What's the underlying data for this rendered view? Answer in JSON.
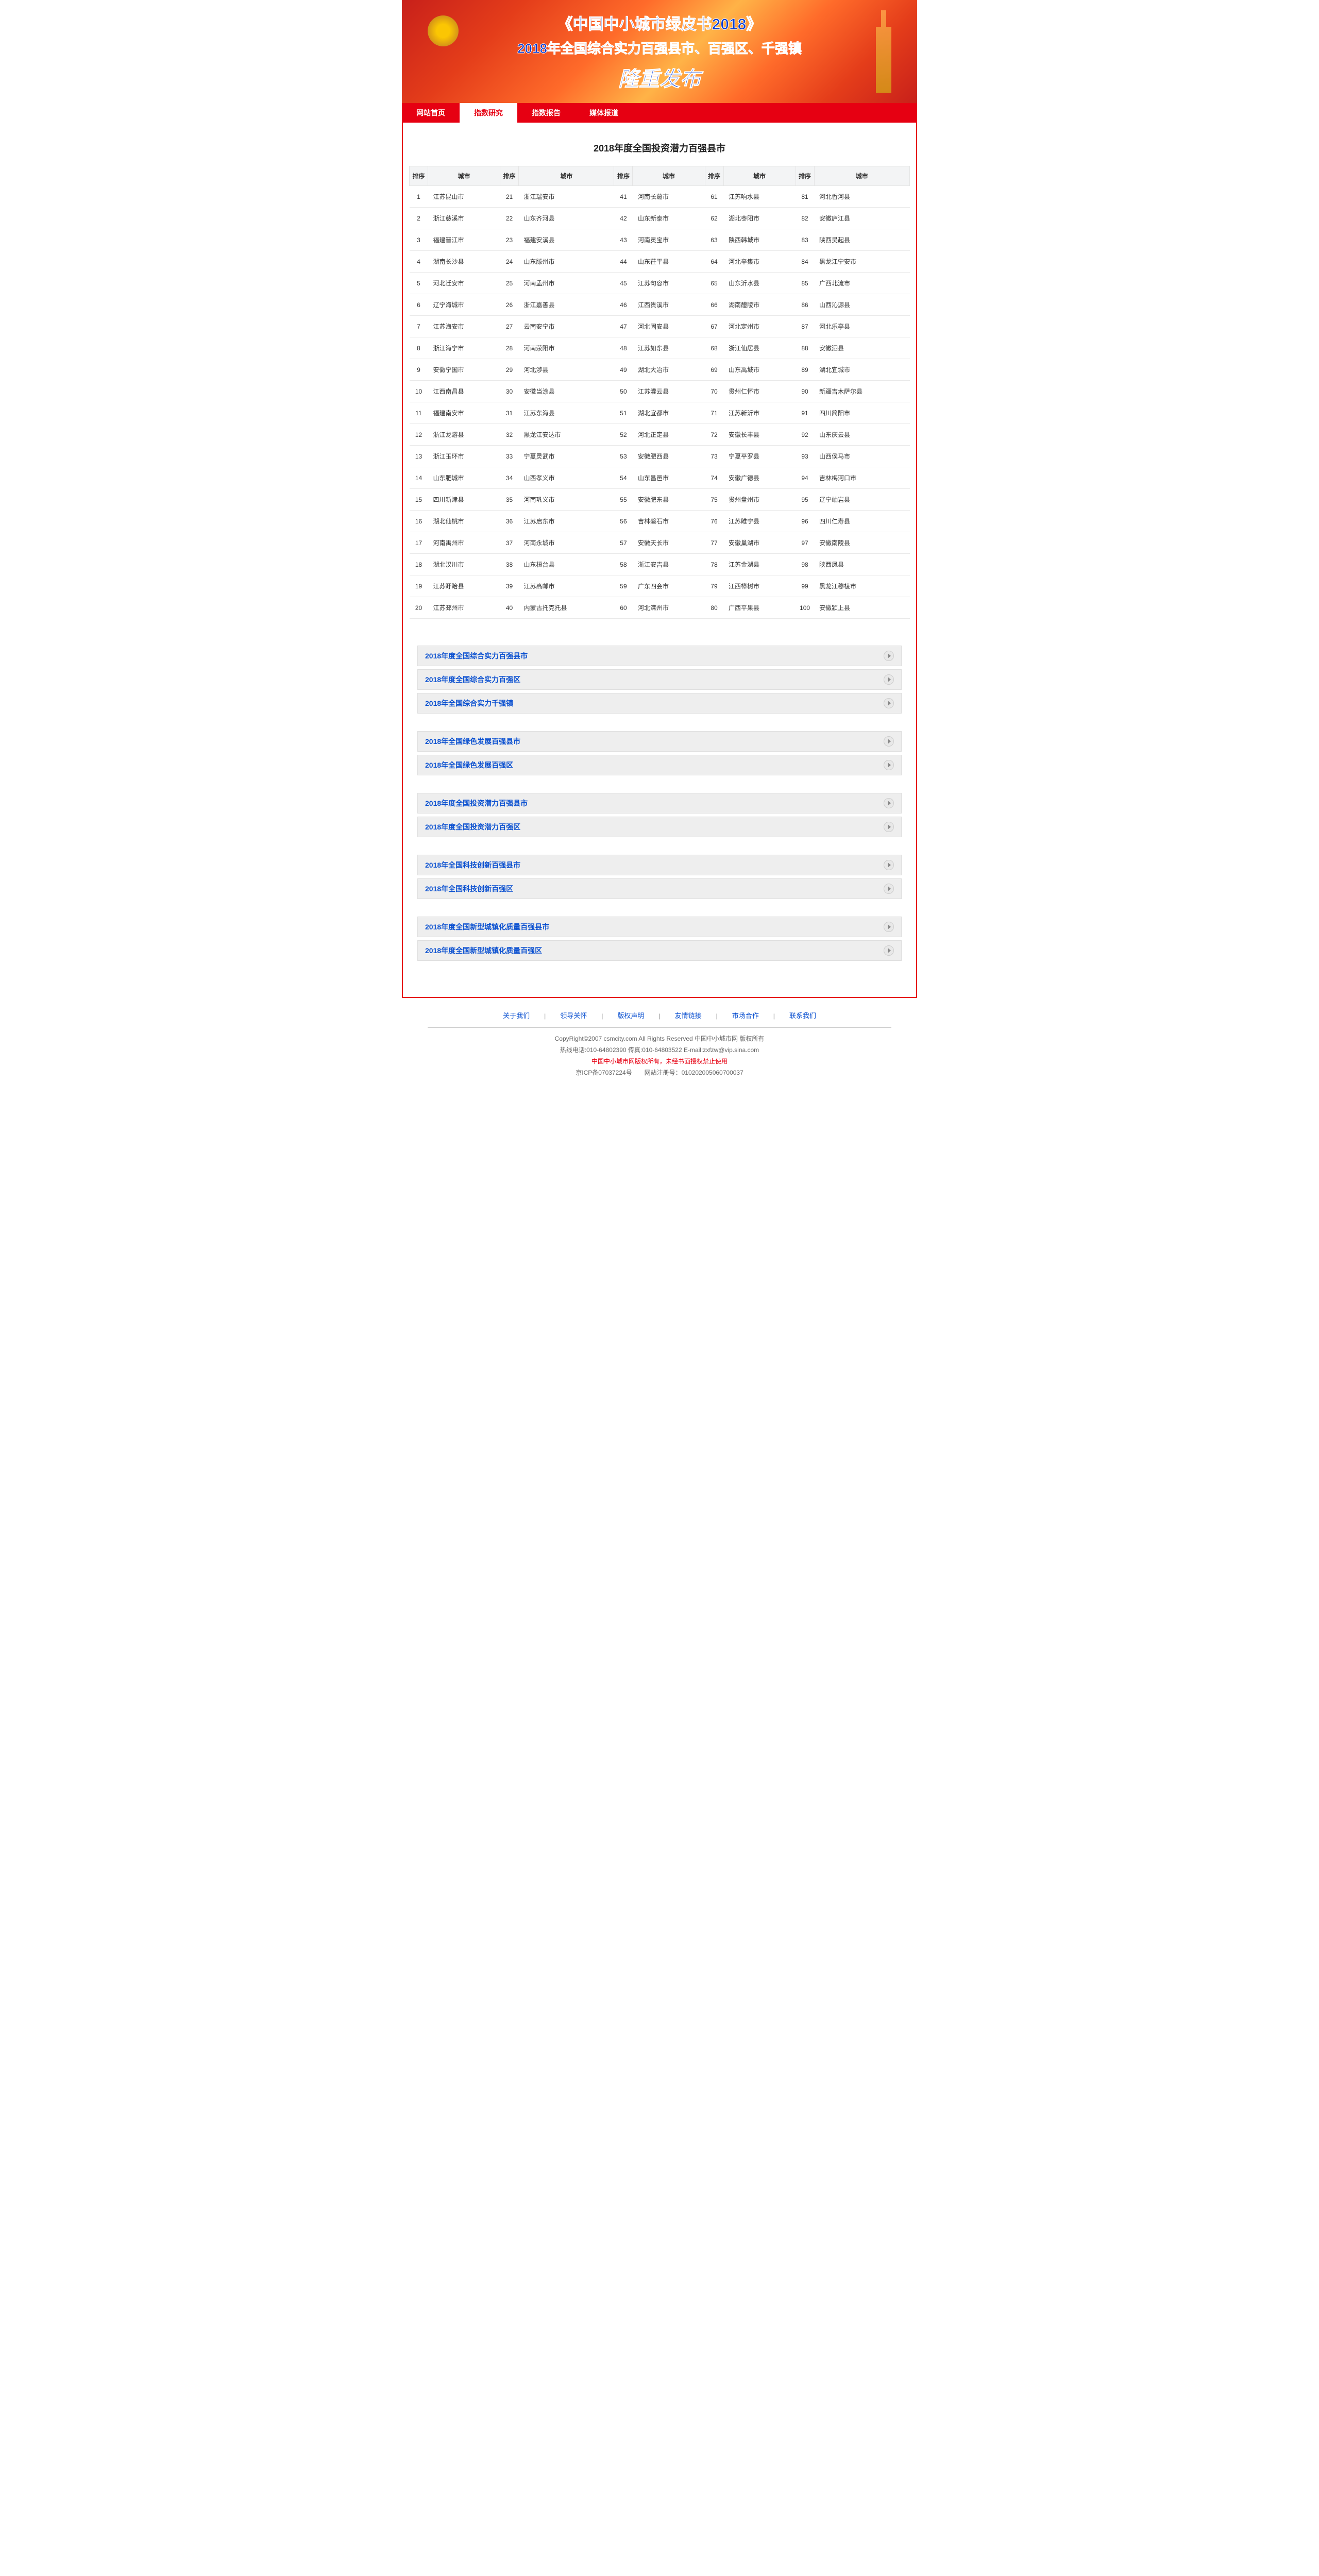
{
  "banner": {
    "line1": "《中国中小城市绿皮书2018》",
    "line2": "2018年全国综合实力百强县市、百强区、千强镇",
    "line3": "隆重发布"
  },
  "nav": {
    "items": [
      {
        "label": "网站首页",
        "active": false
      },
      {
        "label": "指数研究",
        "active": true
      },
      {
        "label": "指数报告",
        "active": false
      },
      {
        "label": "媒体报道",
        "active": false
      }
    ]
  },
  "table": {
    "title": "2018年度全国投资潜力百强县市",
    "header_rank": "排序",
    "header_city": "城市",
    "rows": [
      [
        {
          "r": "1",
          "c": "江苏昆山市"
        },
        {
          "r": "21",
          "c": "浙江瑞安市"
        },
        {
          "r": "41",
          "c": "河南长葛市"
        },
        {
          "r": "61",
          "c": "江苏响水县"
        },
        {
          "r": "81",
          "c": "河北香河县"
        }
      ],
      [
        {
          "r": "2",
          "c": "浙江慈溪市"
        },
        {
          "r": "22",
          "c": "山东齐河县"
        },
        {
          "r": "42",
          "c": "山东新泰市"
        },
        {
          "r": "62",
          "c": "湖北枣阳市"
        },
        {
          "r": "82",
          "c": "安徽庐江县"
        }
      ],
      [
        {
          "r": "3",
          "c": "福建晋江市"
        },
        {
          "r": "23",
          "c": "福建安溪县"
        },
        {
          "r": "43",
          "c": "河南灵宝市"
        },
        {
          "r": "63",
          "c": "陕西韩城市"
        },
        {
          "r": "83",
          "c": "陕西吴起县"
        }
      ],
      [
        {
          "r": "4",
          "c": "湖南长沙县"
        },
        {
          "r": "24",
          "c": "山东滕州市"
        },
        {
          "r": "44",
          "c": "山东茌平县"
        },
        {
          "r": "64",
          "c": "河北辛集市"
        },
        {
          "r": "84",
          "c": "黑龙江宁安市"
        }
      ],
      [
        {
          "r": "5",
          "c": "河北迁安市"
        },
        {
          "r": "25",
          "c": "河南孟州市"
        },
        {
          "r": "45",
          "c": "江苏句容市"
        },
        {
          "r": "65",
          "c": "山东沂水县"
        },
        {
          "r": "85",
          "c": "广西北流市"
        }
      ],
      [
        {
          "r": "6",
          "c": "辽宁海城市"
        },
        {
          "r": "26",
          "c": "浙江嘉善县"
        },
        {
          "r": "46",
          "c": "江西贵溪市"
        },
        {
          "r": "66",
          "c": "湖南醴陵市"
        },
        {
          "r": "86",
          "c": "山西沁源县"
        }
      ],
      [
        {
          "r": "7",
          "c": "江苏海安市"
        },
        {
          "r": "27",
          "c": "云南安宁市"
        },
        {
          "r": "47",
          "c": "河北固安县"
        },
        {
          "r": "67",
          "c": "河北定州市"
        },
        {
          "r": "87",
          "c": "河北乐亭县"
        }
      ],
      [
        {
          "r": "8",
          "c": "浙江海宁市"
        },
        {
          "r": "28",
          "c": "河南荥阳市"
        },
        {
          "r": "48",
          "c": "江苏如东县"
        },
        {
          "r": "68",
          "c": "浙江仙居县"
        },
        {
          "r": "88",
          "c": "安徽泗县"
        }
      ],
      [
        {
          "r": "9",
          "c": "安徽宁国市"
        },
        {
          "r": "29",
          "c": "河北涉县"
        },
        {
          "r": "49",
          "c": "湖北大冶市"
        },
        {
          "r": "69",
          "c": "山东禹城市"
        },
        {
          "r": "89",
          "c": "湖北宜城市"
        }
      ],
      [
        {
          "r": "10",
          "c": "江西南昌县"
        },
        {
          "r": "30",
          "c": "安徽当涂县"
        },
        {
          "r": "50",
          "c": "江苏灌云县"
        },
        {
          "r": "70",
          "c": "贵州仁怀市"
        },
        {
          "r": "90",
          "c": "新疆吉木萨尔县"
        }
      ],
      [
        {
          "r": "11",
          "c": "福建南安市"
        },
        {
          "r": "31",
          "c": "江苏东海县"
        },
        {
          "r": "51",
          "c": "湖北宜都市"
        },
        {
          "r": "71",
          "c": "江苏新沂市"
        },
        {
          "r": "91",
          "c": "四川简阳市"
        }
      ],
      [
        {
          "r": "12",
          "c": "浙江龙游县"
        },
        {
          "r": "32",
          "c": "黑龙江安达市"
        },
        {
          "r": "52",
          "c": "河北正定县"
        },
        {
          "r": "72",
          "c": "安徽长丰县"
        },
        {
          "r": "92",
          "c": "山东庆云县"
        }
      ],
      [
        {
          "r": "13",
          "c": "浙江玉环市"
        },
        {
          "r": "33",
          "c": "宁夏灵武市"
        },
        {
          "r": "53",
          "c": "安徽肥西县"
        },
        {
          "r": "73",
          "c": "宁夏平罗县"
        },
        {
          "r": "93",
          "c": "山西侯马市"
        }
      ],
      [
        {
          "r": "14",
          "c": "山东肥城市"
        },
        {
          "r": "34",
          "c": "山西孝义市"
        },
        {
          "r": "54",
          "c": "山东昌邑市"
        },
        {
          "r": "74",
          "c": "安徽广德县"
        },
        {
          "r": "94",
          "c": "吉林梅河口市"
        }
      ],
      [
        {
          "r": "15",
          "c": "四川新津县"
        },
        {
          "r": "35",
          "c": "河南巩义市"
        },
        {
          "r": "55",
          "c": "安徽肥东县"
        },
        {
          "r": "75",
          "c": "贵州盘州市"
        },
        {
          "r": "95",
          "c": "辽宁岫岩县"
        }
      ],
      [
        {
          "r": "16",
          "c": "湖北仙桃市"
        },
        {
          "r": "36",
          "c": "江苏启东市"
        },
        {
          "r": "56",
          "c": "吉林磐石市"
        },
        {
          "r": "76",
          "c": "江苏睢宁县"
        },
        {
          "r": "96",
          "c": "四川仁寿县"
        }
      ],
      [
        {
          "r": "17",
          "c": "河南禹州市"
        },
        {
          "r": "37",
          "c": "河南永城市"
        },
        {
          "r": "57",
          "c": "安徽天长市"
        },
        {
          "r": "77",
          "c": "安徽巢湖市"
        },
        {
          "r": "97",
          "c": "安徽南陵县"
        }
      ],
      [
        {
          "r": "18",
          "c": "湖北汉川市"
        },
        {
          "r": "38",
          "c": "山东桓台县"
        },
        {
          "r": "58",
          "c": "浙江安吉县"
        },
        {
          "r": "78",
          "c": "江苏金湖县"
        },
        {
          "r": "98",
          "c": "陕西凤县"
        }
      ],
      [
        {
          "r": "19",
          "c": "江苏盱眙县"
        },
        {
          "r": "39",
          "c": "江苏高邮市"
        },
        {
          "r": "59",
          "c": "广东四会市"
        },
        {
          "r": "79",
          "c": "江西樟树市"
        },
        {
          "r": "99",
          "c": "黑龙江穆棱市"
        }
      ],
      [
        {
          "r": "20",
          "c": "江苏邳州市"
        },
        {
          "r": "40",
          "c": "内蒙古托克托县"
        },
        {
          "r": "60",
          "c": "河北滦州市"
        },
        {
          "r": "80",
          "c": "广西平果县"
        },
        {
          "r": "100",
          "c": "安徽颍上县"
        }
      ]
    ]
  },
  "panel_groups": [
    {
      "items": [
        "2018年度全国综合实力百强县市",
        "2018年度全国综合实力百强区",
        "2018年全国综合实力千强镇"
      ]
    },
    {
      "items": [
        "2018年全国绿色发展百强县市",
        "2018年全国绿色发展百强区"
      ]
    },
    {
      "items": [
        "2018年度全国投资潜力百强县市",
        "2018年度全国投资潜力百强区"
      ]
    },
    {
      "items": [
        "2018年全国科技创新百强县市",
        "2018年全国科技创新百强区"
      ]
    },
    {
      "items": [
        "2018年度全国新型城镇化质量百强县市",
        "2018年度全国新型城镇化质量百强区"
      ]
    }
  ],
  "footer": {
    "links": [
      "关于我们",
      "领导关怀",
      "版权声明",
      "友情链接",
      "市场合作",
      "联系我们"
    ],
    "copyright": "CopyRight©2007 csmcity.com All Rights Reserved 中国中小城市网 版权所有",
    "hotline": "热线电话:010-64802390 传真:010-64803522 E-mail:zxfzw@vip.sina.com",
    "warning": "中国中小城市网版权所有，未经书面授权禁止使用",
    "icp": "京ICP备07037224号　　网站注册号：010202005060700037"
  }
}
